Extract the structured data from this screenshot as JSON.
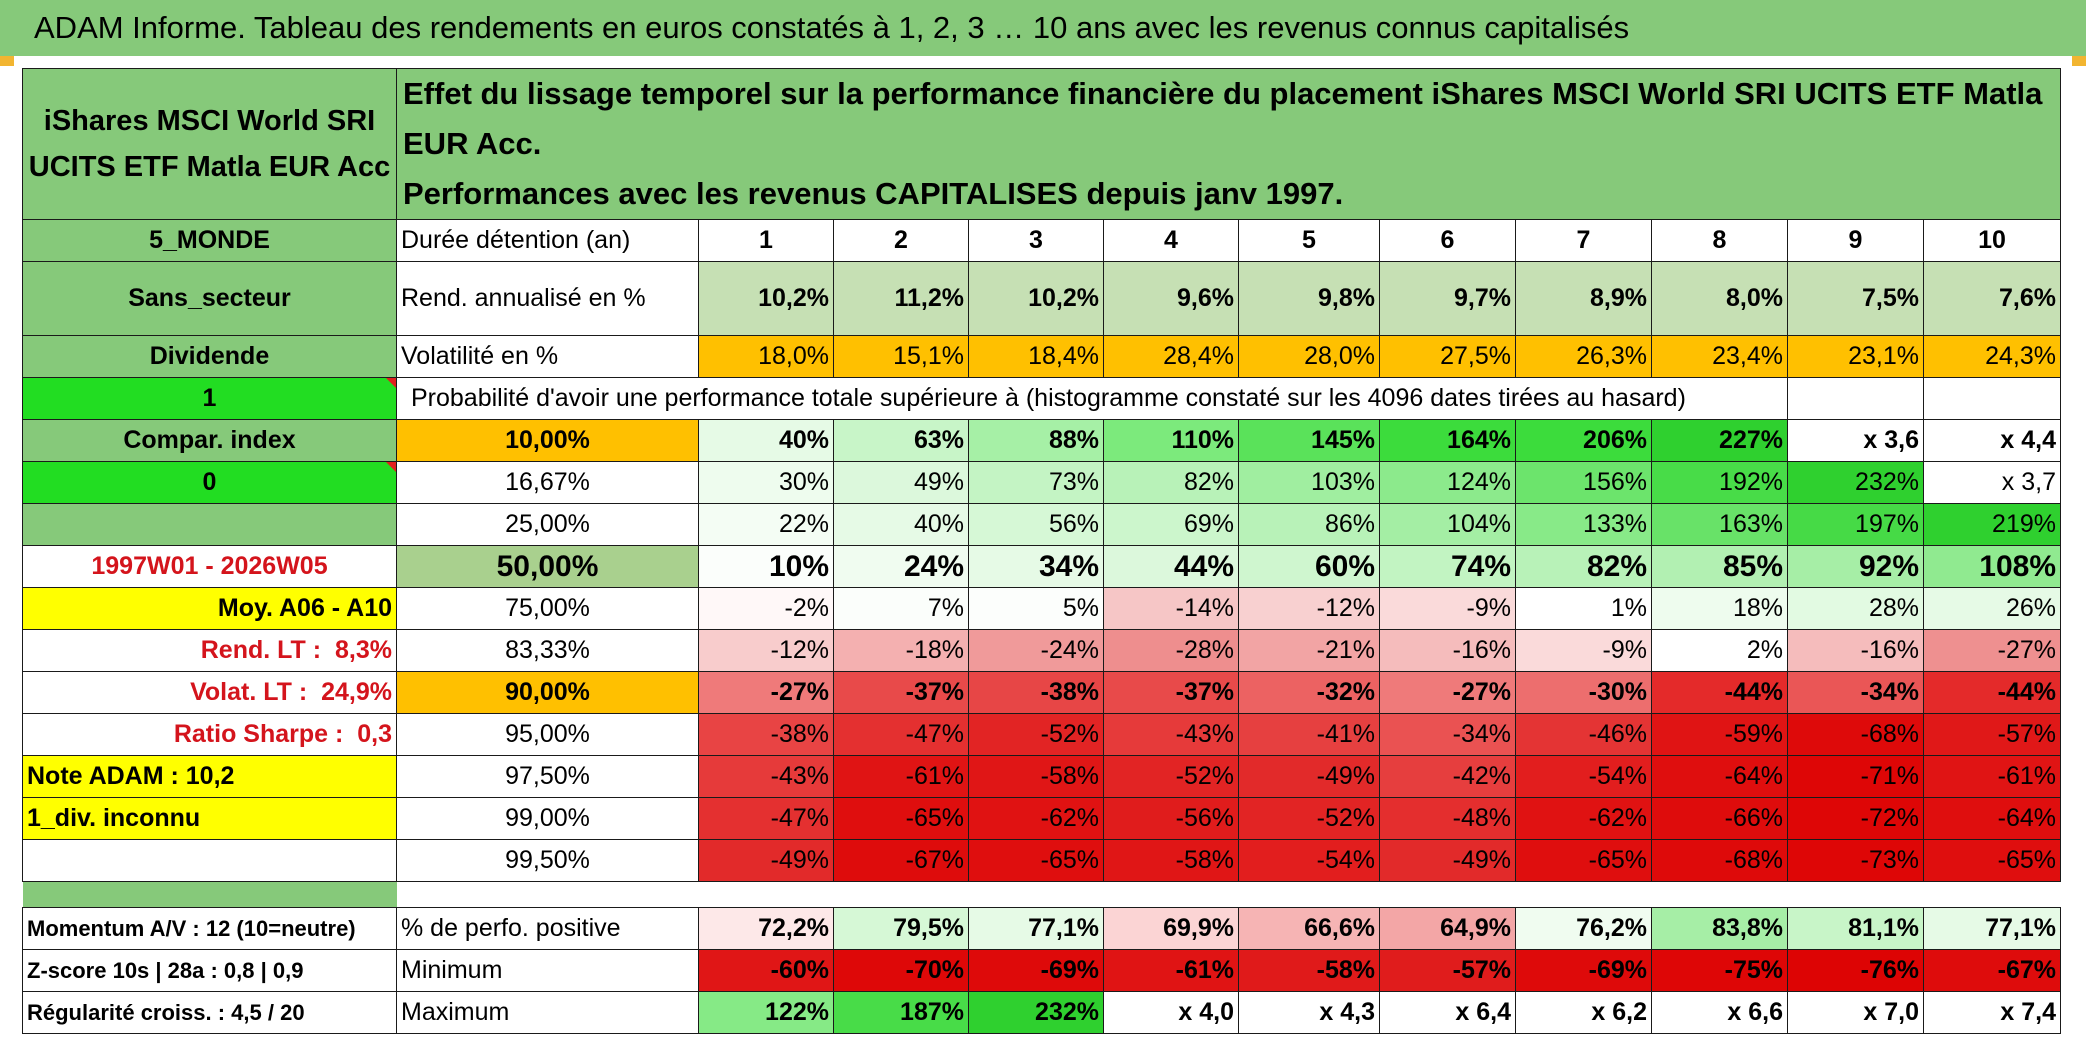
{
  "title": "ADAM Informe. Tableau des rendements en euros constatés à 1, 2, 3 … 10 ans avec les revenus connus capitalisés",
  "header": {
    "fund_name": "iShares MSCI World SRI UCITS ETF Matla EUR Acc",
    "description_line1": "Effet du lissage temporel sur la performance financière du placement iShares MSCI World SRI UCITS ETF Matla EUR Acc.",
    "description_line2": "Performances avec les revenus CAPITALISES depuis janv 1997."
  },
  "side": {
    "region": "5_MONDE",
    "sector": "Sans_secteur",
    "dividend": "Dividende",
    "dividend_value": "1",
    "compar_index": "Compar. index",
    "compar_value": "0",
    "period": "1997W01 - 2026W05",
    "moy": "Moy. A06 - A10",
    "rend_lt_label": "Rend. LT :",
    "rend_lt_value": "8,3%",
    "volat_lt_label": "Volat. LT :",
    "volat_lt_value": "24,9%",
    "sharpe_label": "Ratio Sharpe :",
    "sharpe_value": "0,3",
    "note_adam": "Note ADAM : 10,2",
    "div_inconnu": "1_div. inconnu",
    "momentum": "Momentum A/V : 12 (10=neutre)",
    "zscore": "Z-score 10s | 28a : 0,8 | 0,9",
    "regularite": "Régularité croiss. : 4,5 / 20"
  },
  "table": {
    "duration_label": "Durée détention (an)",
    "years": [
      "1",
      "2",
      "3",
      "4",
      "5",
      "6",
      "7",
      "8",
      "9",
      "10"
    ],
    "rend_label": "Rend. annualisé en %",
    "rend": [
      "10,2%",
      "11,2%",
      "10,2%",
      "9,6%",
      "9,8%",
      "9,7%",
      "8,9%",
      "8,0%",
      "7,5%",
      "7,6%"
    ],
    "vol_label": "Volatilité en %",
    "vol": [
      "18,0%",
      "15,1%",
      "18,4%",
      "28,4%",
      "28,0%",
      "27,5%",
      "26,3%",
      "23,4%",
      "23,1%",
      "24,3%"
    ],
    "prob_label": "Probabilité d'avoir une performance totale supérieure à (histogramme constaté sur les 4096 dates tirées au hasard)",
    "quantiles": [
      {
        "label": "10,00%",
        "values": [
          "40%",
          "63%",
          "88%",
          "110%",
          "145%",
          "164%",
          "206%",
          "227%",
          "x 3,6",
          "x 4,4"
        ],
        "colors": [
          "#e6fae6",
          "#c8f5c8",
          "#a6f0a6",
          "#7cea7c",
          "#5ae25a",
          "#3cdc3c",
          "#3cdc3c",
          "#2fd02f",
          "#ffffff",
          "#ffffff"
        ]
      },
      {
        "label": "16,67%",
        "values": [
          "30%",
          "49%",
          "73%",
          "82%",
          "103%",
          "124%",
          "156%",
          "192%",
          "232%",
          "x 3,7"
        ],
        "colors": [
          "#eefcee",
          "#dcf8dc",
          "#c4f4c4",
          "#b8f2b8",
          "#a0eea0",
          "#8cea8c",
          "#6ce46c",
          "#48dc48",
          "#2fd02f",
          "#ffffff"
        ]
      },
      {
        "label": "25,00%",
        "values": [
          "22%",
          "40%",
          "56%",
          "69%",
          "86%",
          "104%",
          "133%",
          "163%",
          "197%",
          "219%"
        ],
        "colors": [
          "#f4fdf4",
          "#e6fae6",
          "#d6f8d6",
          "#ccf6cc",
          "#b8f2b8",
          "#a4eea4",
          "#88ea88",
          "#68e268",
          "#46da46",
          "#2fd02f"
        ]
      },
      {
        "label": "50,00%",
        "values": [
          "10%",
          "24%",
          "34%",
          "44%",
          "60%",
          "74%",
          "82%",
          "85%",
          "92%",
          "108%"
        ],
        "colors": [
          "#fbfefb",
          "#f0fcf0",
          "#e6fae6",
          "#dcf8dc",
          "#cff6cf",
          "#c2f4c2",
          "#b8f2b8",
          "#b2f0b2",
          "#a6eea6",
          "#90ea90"
        ]
      },
      {
        "label": "75,00%",
        "values": [
          "-2%",
          "7%",
          "5%",
          "-14%",
          "-12%",
          "-9%",
          "1%",
          "18%",
          "28%",
          "26%"
        ],
        "colors": [
          "#fff8f8",
          "#fbfefb",
          "#fcfefc",
          "#f6c6c6",
          "#f8d0d0",
          "#fadada",
          "#ffffff",
          "#eefcee",
          "#e2fae2",
          "#e6fae6"
        ]
      },
      {
        "label": "83,33%",
        "values": [
          "-12%",
          "-18%",
          "-24%",
          "-28%",
          "-21%",
          "-16%",
          "-9%",
          "2%",
          "-16%",
          "-27%"
        ],
        "colors": [
          "#f8cccc",
          "#f4b0b0",
          "#f09a9a",
          "#ee8e8e",
          "#f2a4a4",
          "#f5bcbc",
          "#fadada",
          "#ffffff",
          "#f5bcbc",
          "#ee9090"
        ]
      },
      {
        "label": "90,00%",
        "values": [
          "-27%",
          "-37%",
          "-38%",
          "-37%",
          "-32%",
          "-27%",
          "-30%",
          "-44%",
          "-34%",
          "-44%"
        ],
        "colors": [
          "#ef7a7a",
          "#e84a4a",
          "#e74646",
          "#e84a4a",
          "#ec6262",
          "#ef7a7a",
          "#ed6e6e",
          "#e42a2a",
          "#ea5656",
          "#e42a2a"
        ]
      },
      {
        "label": "95,00%",
        "values": [
          "-38%",
          "-47%",
          "-52%",
          "-43%",
          "-41%",
          "-34%",
          "-46%",
          "-59%",
          "-68%",
          "-57%"
        ],
        "colors": [
          "#e84444",
          "#e43030",
          "#e22424",
          "#e63a3a",
          "#e64040",
          "#ea5252",
          "#e43434",
          "#e01414",
          "#de0a0a",
          "#e01818"
        ]
      },
      {
        "label": "97,50%",
        "values": [
          "-43%",
          "-61%",
          "-58%",
          "-52%",
          "-49%",
          "-42%",
          "-54%",
          "-64%",
          "-71%",
          "-61%"
        ],
        "colors": [
          "#e63a3a",
          "#e01414",
          "#e01616",
          "#e22424",
          "#e22a2a",
          "#e63e3e",
          "#e21e1e",
          "#df0e0e",
          "#de0606",
          "#e01414"
        ]
      },
      {
        "label": "99,00%",
        "values": [
          "-47%",
          "-65%",
          "-62%",
          "-56%",
          "-52%",
          "-48%",
          "-62%",
          "-66%",
          "-72%",
          "-64%"
        ],
        "colors": [
          "#e43030",
          "#df0e0e",
          "#e01212",
          "#e01c1c",
          "#e22424",
          "#e42e2e",
          "#e01212",
          "#de0c0c",
          "#de0606",
          "#df0e0e"
        ]
      },
      {
        "label": "99,50%",
        "values": [
          "-49%",
          "-67%",
          "-65%",
          "-58%",
          "-54%",
          "-49%",
          "-65%",
          "-68%",
          "-73%",
          "-65%"
        ],
        "colors": [
          "#e22a2a",
          "#de0c0c",
          "#df0e0e",
          "#e01616",
          "#e21e1e",
          "#e22a2a",
          "#df0e0e",
          "#de0a0a",
          "#de0606",
          "#df0e0e"
        ]
      }
    ],
    "pos_label": "% de perfo. positive",
    "pos": [
      "72,2%",
      "79,5%",
      "77,1%",
      "69,9%",
      "66,6%",
      "64,9%",
      "76,2%",
      "83,8%",
      "81,1%",
      "77,1%"
    ],
    "pos_colors": [
      "#fde8e8",
      "#d6f8d6",
      "#e6fae6",
      "#fbd4d4",
      "#f6b4b4",
      "#f3a6a6",
      "#f0fcf0",
      "#a6eea6",
      "#c8f5c8",
      "#e6fae6"
    ],
    "min_label": "Minimum",
    "min": [
      "-60%",
      "-70%",
      "-69%",
      "-61%",
      "-58%",
      "-57%",
      "-69%",
      "-75%",
      "-76%",
      "-67%"
    ],
    "min_colors": [
      "#e01616",
      "#de0808",
      "#de0a0a",
      "#e01414",
      "#e01a1a",
      "#e01c1c",
      "#de0a0a",
      "#de0606",
      "#dd0404",
      "#de0c0c"
    ],
    "max_label": "Maximum",
    "max": [
      "122%",
      "187%",
      "232%",
      "x 4,0",
      "x 4,3",
      "x 6,4",
      "x 6,2",
      "x 6,6",
      "x 7,0",
      "x 7,4"
    ],
    "max_colors": [
      "#86ea86",
      "#48dc48",
      "#2fd02f",
      "#ffffff",
      "#ffffff",
      "#ffffff",
      "#ffffff",
      "#ffffff",
      "#ffffff",
      "#ffffff"
    ],
    "colors": {
      "header_green": "#86c97a",
      "rend_green": "#c6e0b4",
      "vol_orange": "#ffc000",
      "bright_green": "#22dd22",
      "yellow": "#ffff00",
      "median_label": "#a9d08e",
      "red_text": "#d4141c"
    }
  }
}
